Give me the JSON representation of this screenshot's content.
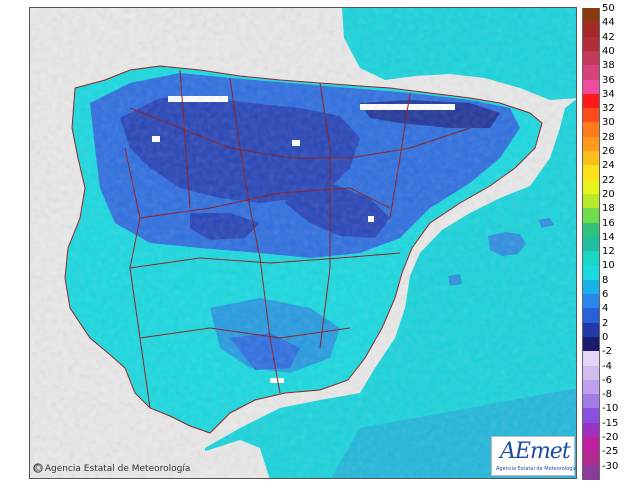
{
  "map": {
    "variable": "temperature",
    "region": "Iberian Peninsula and Balearic Islands",
    "colors": {
      "sea": "#1ad6d9",
      "land_outside": "#e9e9e9",
      "border": "#8b1a1a",
      "cold_core": "#233a9a",
      "mid": "#2f63d6",
      "warm": "#1faee0",
      "snow": "#ffffff"
    }
  },
  "legend": {
    "entries": [
      {
        "label": "50",
        "color": "#8b3a10"
      },
      {
        "label": "44",
        "color": "#a52a2a"
      },
      {
        "label": "42",
        "color": "#b22d3a"
      },
      {
        "label": "40",
        "color": "#c23a5a"
      },
      {
        "label": "38",
        "color": "#d4447a"
      },
      {
        "label": "36",
        "color": "#ee4aa0"
      },
      {
        "label": "34",
        "color": "#ff1a1a"
      },
      {
        "label": "32",
        "color": "#ff4a1a"
      },
      {
        "label": "30",
        "color": "#ff7a1a"
      },
      {
        "label": "28",
        "color": "#ff9a1a"
      },
      {
        "label": "26",
        "color": "#ffbf1a"
      },
      {
        "label": "24",
        "color": "#ffe01a"
      },
      {
        "label": "22",
        "color": "#e8f51a"
      },
      {
        "label": "20",
        "color": "#b8ea2a"
      },
      {
        "label": "18",
        "color": "#70dc4a"
      },
      {
        "label": "16",
        "color": "#2ec27a"
      },
      {
        "label": "14",
        "color": "#1fbfa0"
      },
      {
        "label": "12",
        "color": "#1ad6c4"
      },
      {
        "label": "10",
        "color": "#1ad9e0"
      },
      {
        "label": "8",
        "color": "#1ab0e8"
      },
      {
        "label": "6",
        "color": "#2a86e8"
      },
      {
        "label": "4",
        "color": "#2b5fd8"
      },
      {
        "label": "2",
        "color": "#2238a8"
      },
      {
        "label": "0",
        "color": "#1a1a6e"
      },
      {
        "label": "-2",
        "color": "#e6d6f5"
      },
      {
        "label": "-4",
        "color": "#d2bdf0"
      },
      {
        "label": "-6",
        "color": "#bea0ec"
      },
      {
        "label": "-8",
        "color": "#a47ae6"
      },
      {
        "label": "-10",
        "color": "#8a50e0"
      },
      {
        "label": "-15",
        "color": "#a030c0"
      },
      {
        "label": "-20",
        "color": "#c020a0"
      },
      {
        "label": "-25",
        "color": "#b02a90"
      },
      {
        "label": "-30",
        "color": "#8a3a9a"
      }
    ]
  },
  "footer": {
    "credit_symbol": "©",
    "credit_text": "Agencia Estatal de Meteorología",
    "logo_text": "AEmet",
    "logo_subtext": "Agencia Estatal de Meteorología"
  }
}
